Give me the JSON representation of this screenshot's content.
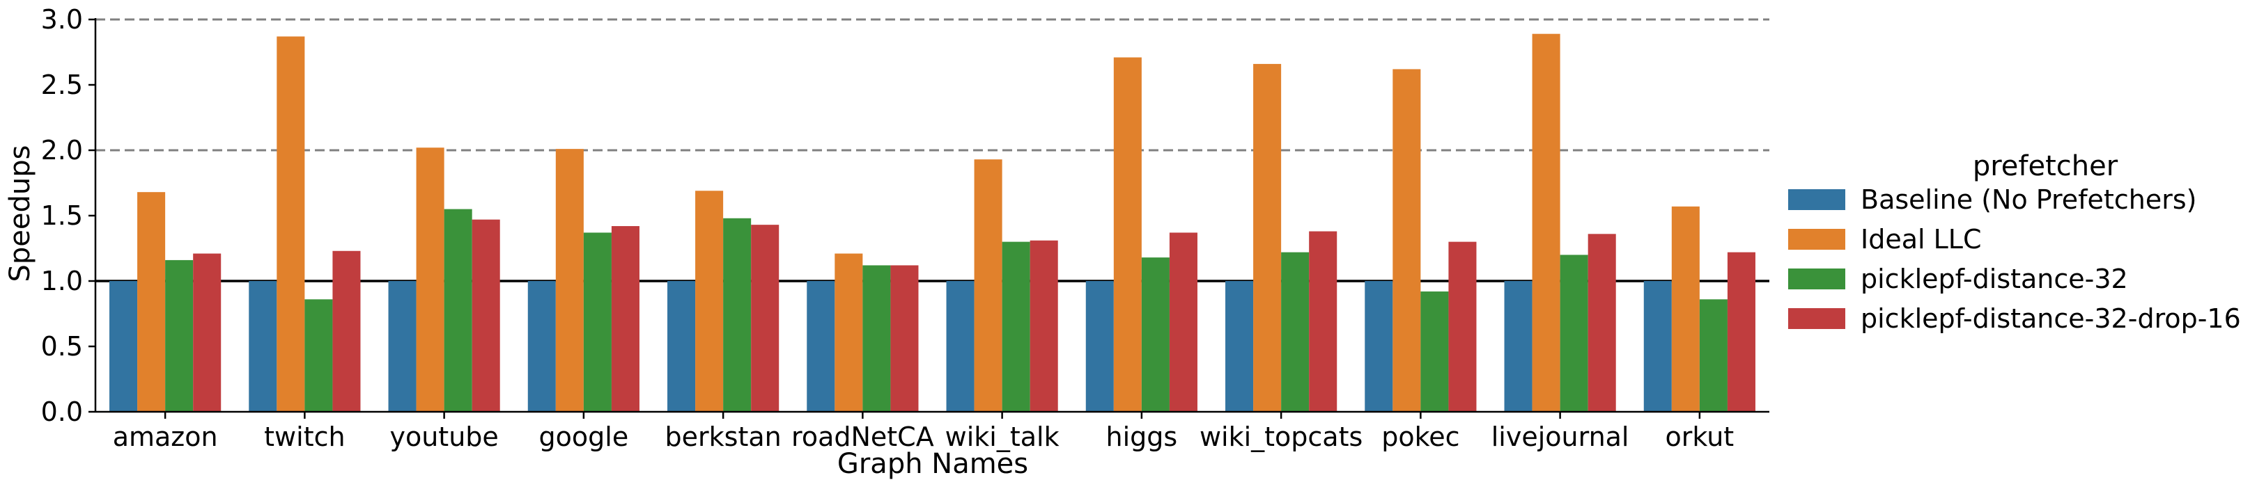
{
  "chart_data": {
    "type": "bar",
    "xlabel": "Graph Names",
    "ylabel": "Speedups",
    "ylim": [
      0,
      3.0
    ],
    "yticks": [
      "0.0",
      "0.5",
      "1.0",
      "1.5",
      "2.0",
      "2.5",
      "3.0"
    ],
    "reference_lines": [
      {
        "y": 1.0,
        "style": "solid"
      },
      {
        "y": 2.0,
        "style": "dashed"
      },
      {
        "y": 3.0,
        "style": "dashed"
      }
    ],
    "legend_title": "prefetcher",
    "legend_position": "right",
    "grid": false,
    "categories": [
      "amazon",
      "twitch",
      "youtube",
      "google",
      "berkstan",
      "roadNetCA",
      "wiki_talk",
      "higgs",
      "wiki_topcats",
      "pokec",
      "livejournal",
      "orkut"
    ],
    "series": [
      {
        "name": "Baseline (No Prefetchers)",
        "color": "#3274a1",
        "values": [
          1.0,
          1.0,
          1.0,
          1.0,
          1.0,
          1.0,
          1.0,
          1.0,
          1.0,
          1.0,
          1.0,
          1.0
        ]
      },
      {
        "name": "Ideal LLC",
        "color": "#e1812c",
        "values": [
          1.68,
          2.87,
          2.02,
          2.01,
          1.69,
          1.21,
          1.93,
          2.71,
          2.66,
          2.62,
          2.89,
          1.57
        ]
      },
      {
        "name": "picklepf-distance-32",
        "color": "#3a923a",
        "values": [
          1.16,
          0.86,
          1.55,
          1.37,
          1.48,
          1.12,
          1.3,
          1.18,
          1.22,
          0.92,
          1.2,
          0.86
        ]
      },
      {
        "name": "picklepf-distance-32-drop-16",
        "color": "#c03d3e",
        "values": [
          1.21,
          1.23,
          1.47,
          1.42,
          1.43,
          1.12,
          1.31,
          1.37,
          1.38,
          1.3,
          1.36,
          1.22
        ]
      }
    ]
  }
}
